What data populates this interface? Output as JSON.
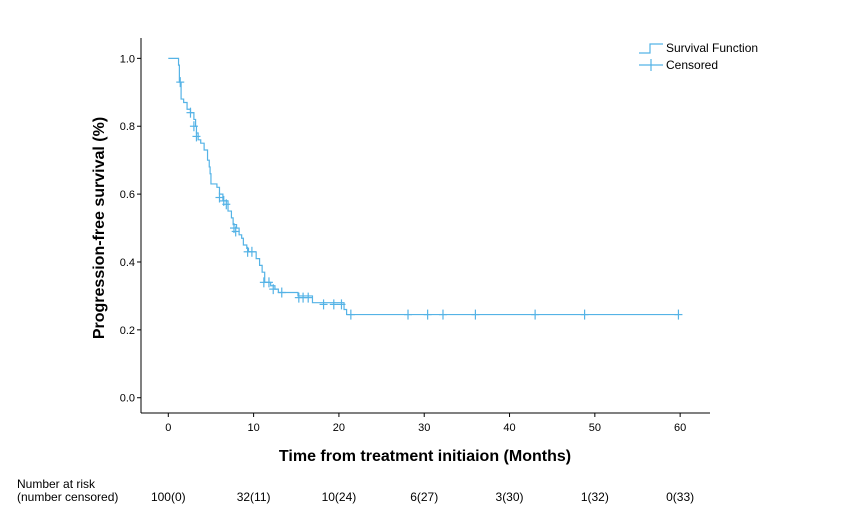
{
  "chart_data": {
    "type": "line",
    "subtype": "kaplan-meier",
    "xlabel": "Time from treatment initiaion (Months)",
    "ylabel": "Progression-free survival (%)",
    "xlim": [
      -3.2,
      63.5
    ],
    "ylim": [
      -0.045,
      1.06
    ],
    "x_ticks": [
      0,
      10,
      20,
      30,
      40,
      50,
      60
    ],
    "y_ticks": [
      0.0,
      0.2,
      0.4,
      0.6,
      0.8,
      1.0
    ],
    "x_tick_labels": [
      "0",
      "10",
      "20",
      "30",
      "40",
      "50",
      "60"
    ],
    "y_tick_labels": [
      "0.0",
      "0.2",
      "0.4",
      "0.6",
      "0.8",
      "1.0"
    ],
    "grid": false,
    "legend_position": "top-right",
    "color": "#55b3e6",
    "series": [
      {
        "name": "Survival Function",
        "steps": [
          [
            0,
            1.0
          ],
          [
            1.2,
            0.98
          ],
          [
            1.3,
            0.93
          ],
          [
            1.5,
            0.88
          ],
          [
            1.8,
            0.87
          ],
          [
            2.2,
            0.85
          ],
          [
            2.6,
            0.84
          ],
          [
            3.0,
            0.82
          ],
          [
            3.2,
            0.8
          ],
          [
            3.3,
            0.78
          ],
          [
            3.5,
            0.76
          ],
          [
            3.8,
            0.75
          ],
          [
            4.2,
            0.73
          ],
          [
            4.6,
            0.7
          ],
          [
            4.8,
            0.68
          ],
          [
            4.9,
            0.66
          ],
          [
            5.0,
            0.63
          ],
          [
            5.7,
            0.62
          ],
          [
            6.0,
            0.6
          ],
          [
            6.4,
            0.58
          ],
          [
            7.0,
            0.55
          ],
          [
            7.4,
            0.53
          ],
          [
            7.6,
            0.51
          ],
          [
            8.0,
            0.5
          ],
          [
            8.3,
            0.48
          ],
          [
            8.6,
            0.47
          ],
          [
            8.8,
            0.45
          ],
          [
            9.2,
            0.44
          ],
          [
            9.4,
            0.43
          ],
          [
            10.3,
            0.41
          ],
          [
            10.7,
            0.39
          ],
          [
            11.0,
            0.37
          ],
          [
            11.3,
            0.34
          ],
          [
            12.0,
            0.33
          ],
          [
            12.5,
            0.32
          ],
          [
            12.9,
            0.31
          ],
          [
            15.2,
            0.3
          ],
          [
            16.9,
            0.28
          ],
          [
            20.6,
            0.26
          ],
          [
            20.9,
            0.245
          ],
          [
            59.8,
            0.245
          ]
        ]
      },
      {
        "name": "Censored",
        "points": [
          [
            1.4,
            0.93
          ],
          [
            2.6,
            0.84
          ],
          [
            3.0,
            0.8
          ],
          [
            3.3,
            0.77
          ],
          [
            6.0,
            0.59
          ],
          [
            6.5,
            0.58
          ],
          [
            6.8,
            0.57
          ],
          [
            7.7,
            0.5
          ],
          [
            7.9,
            0.49
          ],
          [
            9.3,
            0.43
          ],
          [
            9.8,
            0.43
          ],
          [
            11.2,
            0.34
          ],
          [
            11.8,
            0.34
          ],
          [
            12.3,
            0.32
          ],
          [
            13.3,
            0.31
          ],
          [
            15.3,
            0.295
          ],
          [
            15.8,
            0.295
          ],
          [
            16.4,
            0.295
          ],
          [
            18.2,
            0.275
          ],
          [
            19.4,
            0.275
          ],
          [
            20.3,
            0.275
          ],
          [
            21.4,
            0.245
          ],
          [
            28.1,
            0.245
          ],
          [
            30.4,
            0.245
          ],
          [
            32.2,
            0.245
          ],
          [
            36.0,
            0.245
          ],
          [
            43.0,
            0.245
          ],
          [
            48.8,
            0.245
          ],
          [
            59.8,
            0.245
          ]
        ]
      }
    ],
    "risk_table": {
      "header_line1": "Number at risk",
      "header_line2": "(number censored)",
      "times": [
        0,
        10,
        20,
        30,
        40,
        50,
        60
      ],
      "values": [
        "100(0)",
        "32(11)",
        "10(24)",
        "6(27)",
        "3(30)",
        "1(32)",
        "0(33)"
      ]
    }
  }
}
